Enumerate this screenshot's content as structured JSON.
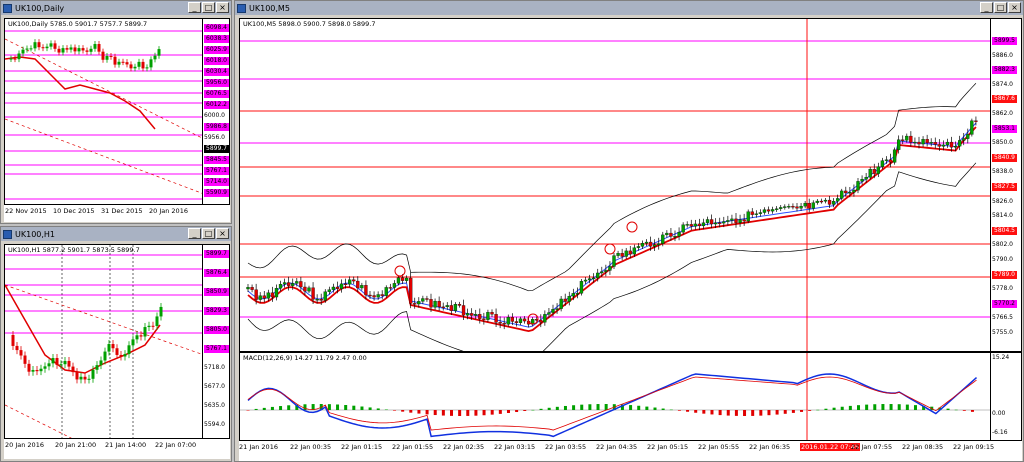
{
  "colors": {
    "bull": "#00a000",
    "bear": "#e00000",
    "ma": "#e00000",
    "ma2": "#3050ff",
    "bb": "#000000",
    "hline_mag": "#ff00ff",
    "hline_red": "#ff1010",
    "macd": "#1030e0",
    "signal": "#e00000"
  },
  "daily": {
    "title": "UK100,Daily",
    "info": "UK100,Daily  5785.0 5901.7 5757.7 5899.7",
    "price_labels": [
      {
        "t": "6098.4",
        "c": "mag"
      },
      {
        "t": "6038.3",
        "c": "mag"
      },
      {
        "t": "6025.9",
        "c": "mag"
      },
      {
        "t": "6018.0",
        "c": "mag"
      },
      {
        "t": "6030.4",
        "c": "mag"
      },
      {
        "t": "5956.0",
        "c": "mag"
      },
      {
        "t": "6076.5",
        "c": "mag"
      },
      {
        "t": "6012.2",
        "c": "mag"
      },
      {
        "t": "6000.0",
        "c": "plain"
      },
      {
        "t": "5986.8",
        "c": "mag"
      },
      {
        "t": "5956.0",
        "c": "plain"
      },
      {
        "t": "5899.7",
        "c": "blk"
      },
      {
        "t": "5845.5",
        "c": "mag"
      },
      {
        "t": "5767.1",
        "c": "mag"
      },
      {
        "t": "5714.0",
        "c": "mag"
      },
      {
        "t": "5590.9",
        "c": "mag"
      }
    ],
    "time_labels": [
      "22 Nov 2015",
      "10 Dec 2015",
      "31 Dec 2015",
      "20 Jan 2016"
    ]
  },
  "h1": {
    "title": "UK100,H1",
    "info": "UK100,H1  5877.2 5901.7 5873.5 5899.7",
    "price_labels": [
      {
        "t": "5899.7",
        "c": "mag"
      },
      {
        "t": "5876.4",
        "c": "mag"
      },
      {
        "t": "5850.9",
        "c": "mag"
      },
      {
        "t": "5829.3",
        "c": "mag"
      },
      {
        "t": "5805.0",
        "c": "mag"
      },
      {
        "t": "5767.1",
        "c": "mag"
      },
      {
        "t": "5718.0",
        "c": "plain"
      },
      {
        "t": "5677.0",
        "c": "plain"
      },
      {
        "t": "5635.0",
        "c": "plain"
      },
      {
        "t": "5594.0",
        "c": "plain"
      }
    ],
    "time_labels": [
      "20 Jan 2016",
      "20 Jan 21:00",
      "21 Jan 14:00",
      "22 Jan 07:00"
    ]
  },
  "m5": {
    "title": "UK100,M5",
    "info": "UK100,M5  5898.0 5900.7 5898.0 5899.7",
    "price_labels": [
      {
        "t": "5899.5",
        "c": "mag"
      },
      {
        "t": "5886.0",
        "c": "plain"
      },
      {
        "t": "5882.3",
        "c": "mag"
      },
      {
        "t": "5874.0",
        "c": "plain"
      },
      {
        "t": "5867.6",
        "c": "r"
      },
      {
        "t": "5862.0",
        "c": "plain"
      },
      {
        "t": "5853.1",
        "c": "mag"
      },
      {
        "t": "5850.0",
        "c": "plain"
      },
      {
        "t": "5840.9",
        "c": "r"
      },
      {
        "t": "5838.0",
        "c": "plain"
      },
      {
        "t": "5827.5",
        "c": "r"
      },
      {
        "t": "5826.0",
        "c": "plain"
      },
      {
        "t": "5814.0",
        "c": "plain"
      },
      {
        "t": "5804.5",
        "c": "r"
      },
      {
        "t": "5802.0",
        "c": "plain"
      },
      {
        "t": "5790.0",
        "c": "plain"
      },
      {
        "t": "5789.0",
        "c": "r"
      },
      {
        "t": "5778.0",
        "c": "plain"
      },
      {
        "t": "5770.2",
        "c": "mag"
      },
      {
        "t": "5766.5",
        "c": "plain"
      },
      {
        "t": "5755.0",
        "c": "plain"
      }
    ],
    "macd_info": "MACD(12,26,9) 14.27 11.79 2.47 0.00",
    "macd_labels": [
      "15.24",
      "0.00",
      "-6.16"
    ],
    "time_labels": [
      "21 Jan 2016",
      "22 Jan 00:35",
      "22 Jan 01:15",
      "22 Jan 01:55",
      "22 Jan 02:35",
      "22 Jan 03:15",
      "22 Jan 03:55",
      "22 Jan 04:35",
      "22 Jan 05:15",
      "22 Jan 05:55",
      "22 Jan 06:35",
      "2016.01.22 07:45",
      "22 Jan 07:55",
      "22 Jan 08:35",
      "22 Jan 09:15"
    ]
  }
}
